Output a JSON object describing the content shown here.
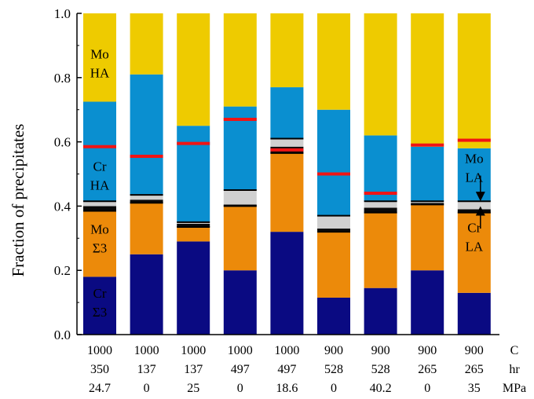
{
  "chart_data": {
    "type": "bar",
    "stacked": true,
    "ylabel": "Fraction of precipitates",
    "ylim": [
      0,
      1
    ],
    "yticks": [
      "0.0",
      "0.2",
      "0.4",
      "0.6",
      "0.8",
      "1.0"
    ],
    "condition_units": [
      "C",
      "hr",
      "MPa"
    ],
    "categories": [
      {
        "temperature": "1000",
        "time": "350",
        "stress": "24.7"
      },
      {
        "temperature": "1000",
        "time": "137",
        "stress": "0"
      },
      {
        "temperature": "1000",
        "time": "137",
        "stress": "25"
      },
      {
        "temperature": "1000",
        "time": "497",
        "stress": "0"
      },
      {
        "temperature": "1000",
        "time": "497",
        "stress": "18.6"
      },
      {
        "temperature": "900",
        "time": "528",
        "stress": "0"
      },
      {
        "temperature": "900",
        "time": "528",
        "stress": "40.2"
      },
      {
        "temperature": "900",
        "time": "265",
        "stress": "0"
      },
      {
        "temperature": "900",
        "time": "265",
        "stress": "35"
      }
    ],
    "colors": {
      "cr_sigma3": "#0a0a82",
      "mo_sigma3": "#ec8a0a",
      "cr_la": "#0a0a0a",
      "mo_la": "#d0d0d0",
      "cr_ha": "#0a8fd0",
      "mo_ha": "#eecb00",
      "marker": "#f01414"
    },
    "series": [
      {
        "key": "cr_sigma3",
        "values": [
          0.18,
          0.25,
          0.29,
          0.2,
          0.32,
          0.115,
          0.145,
          0.2,
          0.13
        ]
      },
      {
        "key": "mo_sigma3",
        "values": [
          0.205,
          0.16,
          0.045,
          0.2,
          0.245,
          0.205,
          0.235,
          0.205,
          0.25
        ]
      },
      {
        "key": "cr_la",
        "values": [
          0.015,
          0.01,
          0.01,
          0.005,
          0.02,
          0.01,
          0.015,
          0.005,
          0.01
        ]
      },
      {
        "key": "mo_la",
        "values": [
          0.015,
          0.015,
          0.005,
          0.045,
          0.025,
          0.04,
          0.02,
          0.005,
          0.025
        ]
      },
      {
        "key": "cr_ha",
        "values": [
          0.31,
          0.375,
          0.3,
          0.26,
          0.16,
          0.33,
          0.205,
          0.17,
          0.165
        ]
      },
      {
        "key": "mo_ha",
        "values": [
          0.275,
          0.19,
          0.35,
          0.29,
          0.23,
          0.3,
          0.38,
          0.415,
          0.42
        ]
      }
    ],
    "red_markers": [
      0.585,
      0.555,
      0.595,
      0.67,
      0.575,
      0.5,
      0.44,
      0.59,
      0.605
    ],
    "annotations": [
      {
        "bar": 0,
        "y": 0.835,
        "lines": [
          "Mo",
          "HA"
        ]
      },
      {
        "bar": 0,
        "y": 0.485,
        "lines": [
          "Cr",
          "HA"
        ]
      },
      {
        "bar": 0,
        "y": 0.29,
        "lines": [
          "Mo",
          "Σ3"
        ]
      },
      {
        "bar": 0,
        "y": 0.09,
        "lines": [
          "Cr",
          "Σ3"
        ]
      },
      {
        "bar": 8,
        "y": 0.51,
        "lines": [
          "Mo",
          "LA"
        ]
      },
      {
        "bar": 8,
        "y": 0.295,
        "lines": [
          "Cr",
          "LA"
        ]
      }
    ]
  }
}
